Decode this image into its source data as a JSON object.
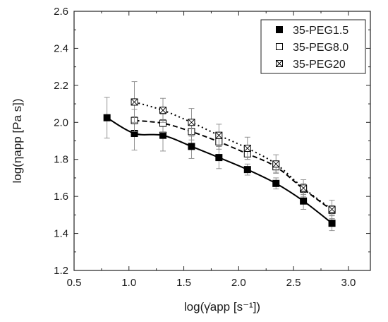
{
  "chart_data": {
    "type": "scatter",
    "xlabel": "log(γ̇app [s⁻¹])",
    "ylabel": "log(ηapp [Pa s])",
    "xlim": [
      0.5,
      3.2
    ],
    "ylim": [
      1.2,
      2.6
    ],
    "x_ticks": [
      "0.5",
      "1.0",
      "1.5",
      "2.0",
      "2.5",
      "3.0"
    ],
    "y_ticks": [
      "1.2",
      "1.4",
      "1.6",
      "1.8",
      "2.0",
      "2.2",
      "2.4",
      "2.6"
    ],
    "grid": false,
    "legend_position": "top-right",
    "series": [
      {
        "name": "35-PEG1.5",
        "marker": "filled-square",
        "line_style": "solid",
        "color": "#000000",
        "x": [
          0.8,
          1.05,
          1.31,
          1.57,
          1.82,
          2.08,
          2.34,
          2.59,
          2.85
        ],
        "y": [
          2.025,
          1.94,
          1.93,
          1.87,
          1.81,
          1.745,
          1.67,
          1.575,
          1.455
        ],
        "error": [
          0.11,
          0.09,
          0.085,
          0.065,
          0.06,
          0.03,
          0.03,
          0.045,
          0.04
        ]
      },
      {
        "name": "35-PEG8.0",
        "marker": "open-square",
        "line_style": "dashed",
        "color": "#000000",
        "x": [
          1.05,
          1.31,
          1.57,
          1.82,
          2.08,
          2.34,
          2.59,
          2.85
        ],
        "y": [
          2.01,
          1.995,
          1.95,
          1.895,
          1.83,
          1.76,
          1.64,
          1.525
        ],
        "error": [
          0.06,
          0.05,
          0.045,
          0.04,
          0.03,
          0.03,
          0.03,
          0.025
        ]
      },
      {
        "name": "35-PEG20",
        "marker": "crossed-square",
        "line_style": "dotted",
        "color": "#000000",
        "x": [
          1.05,
          1.31,
          1.57,
          1.82,
          2.08,
          2.34,
          2.59,
          2.85
        ],
        "y": [
          2.11,
          2.065,
          2.0,
          1.93,
          1.86,
          1.775,
          1.645,
          1.53
        ],
        "error": [
          0.11,
          0.065,
          0.075,
          0.06,
          0.06,
          0.05,
          0.045,
          0.05
        ]
      }
    ]
  }
}
